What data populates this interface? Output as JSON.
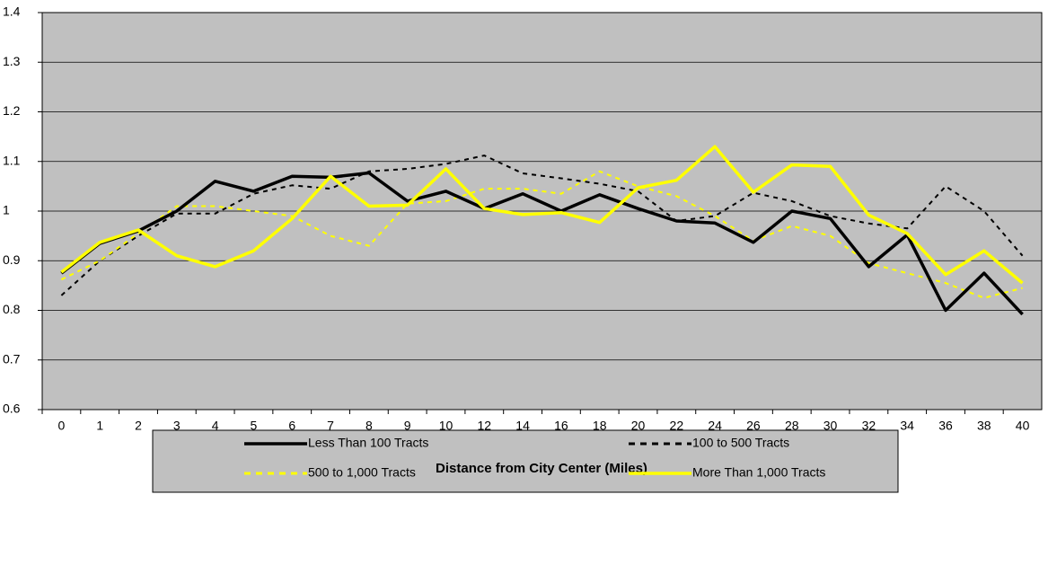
{
  "chart_data": {
    "type": "line",
    "x_label": "Distance from City Center (Miles)",
    "categories": [
      "0",
      "1",
      "2",
      "3",
      "4",
      "5",
      "6",
      "7",
      "8",
      "9",
      "10",
      "12",
      "14",
      "16",
      "18",
      "20",
      "22",
      "24",
      "26",
      "28",
      "30",
      "32",
      "34",
      "36",
      "38",
      "40"
    ],
    "series": [
      {
        "name": "Less Than 100 Tracts",
        "color": "#000000",
        "style": "solid",
        "values": [
          0.875,
          0.935,
          0.96,
          1.0,
          1.06,
          1.04,
          1.07,
          1.068,
          1.077,
          1.02,
          1.04,
          1.005,
          1.035,
          1.0,
          1.033,
          1.005,
          0.98,
          0.976,
          0.937,
          1.0,
          0.985,
          0.888,
          0.952,
          0.8,
          0.875,
          0.792
        ]
      },
      {
        "name": "100 to 500 Tracts",
        "color": "#000000",
        "style": "dashed",
        "values": [
          0.83,
          0.9,
          0.95,
          0.995,
          0.995,
          1.035,
          1.052,
          1.045,
          1.08,
          1.085,
          1.095,
          1.112,
          1.076,
          1.066,
          1.055,
          1.04,
          0.98,
          0.99,
          1.037,
          1.02,
          0.99,
          0.975,
          0.965,
          1.05,
          1.0,
          0.91
        ]
      },
      {
        "name": "500 to 1,000 Tracts",
        "color": "#ffff00",
        "style": "dashed",
        "values": [
          0.862,
          0.9,
          0.955,
          1.01,
          1.01,
          1.0,
          0.99,
          0.95,
          0.93,
          1.015,
          1.02,
          1.045,
          1.045,
          1.035,
          1.08,
          1.05,
          1.03,
          0.99,
          0.94,
          0.97,
          0.95,
          0.895,
          0.875,
          0.855,
          0.825,
          0.845
        ]
      },
      {
        "name": "More Than 1,000 Tracts",
        "color": "#ffff00",
        "style": "solid",
        "values": [
          0.877,
          0.937,
          0.962,
          0.91,
          0.888,
          0.92,
          0.985,
          1.07,
          1.01,
          1.012,
          1.085,
          1.005,
          0.993,
          0.997,
          0.977,
          1.047,
          1.062,
          1.13,
          1.038,
          1.093,
          1.09,
          0.992,
          0.955,
          0.872,
          0.92,
          0.855
        ]
      }
    ],
    "ylim": [
      0.6,
      1.4
    ],
    "yticks": [
      0.6,
      0.7,
      0.8,
      0.9,
      1,
      1.1,
      1.2,
      1.3,
      1.4
    ],
    "grid": true,
    "legend": "bottom",
    "plot_background": "#c0c0c0"
  }
}
